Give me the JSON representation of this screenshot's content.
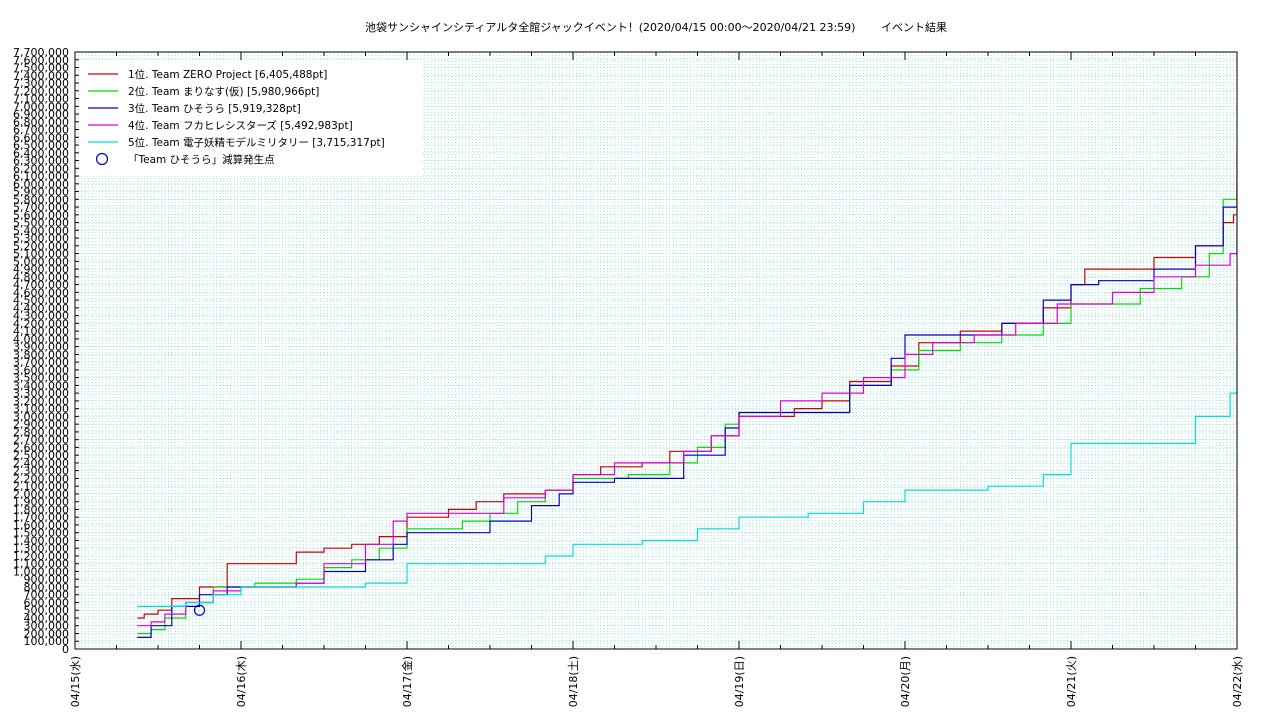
{
  "chart_data": {
    "type": "line",
    "title": "池袋サンシャインシティアルタ全館ジャックイベント！(2020/04/15 00:00～2020/04/21 23:59)　　 イベント結果",
    "xlabel": "",
    "ylabel": "",
    "x_start": "2020-04-15T00:00",
    "x_end": "2020-04-22T00:00",
    "x_ticks": [
      "04/15(水)",
      "04/16(木)",
      "04/17(金)",
      "04/18(土)",
      "04/19(日)",
      "04/20(月)",
      "04/21(火)",
      "04/22(水)"
    ],
    "ylim": [
      0,
      7700000
    ],
    "y_ticks": [
      "0",
      "100,000",
      "200,000",
      "300,000",
      "400,000",
      "500,000",
      "600,000",
      "700,000",
      "800,000",
      "900,000",
      "1,000,000",
      "1,100,000",
      "1,200,000",
      "1,300,000",
      "1,400,000",
      "1,500,000",
      "1,600,000",
      "1,700,000",
      "1,800,000",
      "1,900,000",
      "2,000,000",
      "2,100,000",
      "2,200,000",
      "2,300,000",
      "2,400,000",
      "2,500,000",
      "2,600,000",
      "2,700,000",
      "2,800,000",
      "2,900,000",
      "3,000,000",
      "3,100,000",
      "3,200,000",
      "3,300,000",
      "3,400,000",
      "3,500,000",
      "3,600,000",
      "3,700,000",
      "3,800,000",
      "3,900,000",
      "4,000,000",
      "4,100,000",
      "4,200,000",
      "4,300,000",
      "4,400,000",
      "4,500,000",
      "4,600,000",
      "4,700,000",
      "4,800,000",
      "4,900,000",
      "5,000,000",
      "5,100,000",
      "5,200,000",
      "5,300,000",
      "5,400,000",
      "5,500,000",
      "5,600,000",
      "5,700,000",
      "5,800,000",
      "5,900,000",
      "6,000,000",
      "6,100,000",
      "6,200,000",
      "6,300,000",
      "6,400,000",
      "6,500,000",
      "6,600,000",
      "6,700,000",
      "6,800,000",
      "6,900,000",
      "7,000,000",
      "7,100,000",
      "7,200,000",
      "7,300,000",
      "7,400,000",
      "7,500,000",
      "7,600,000",
      "7,700,000"
    ],
    "grid": true,
    "legend_position": "top-left",
    "series": [
      {
        "name": "1位. Team ZERO Project [6,405,488pt]",
        "color": "#cc0000",
        "points": [
          [
            "2020-04-15T09:00",
            400000
          ],
          [
            "2020-04-15T10:00",
            450000
          ],
          [
            "2020-04-15T12:00",
            500000
          ],
          [
            "2020-04-15T14:00",
            650000
          ],
          [
            "2020-04-15T18:00",
            800000
          ],
          [
            "2020-04-15T22:00",
            1100000
          ],
          [
            "2020-04-16T04:00",
            1100000
          ],
          [
            "2020-04-16T08:00",
            1250000
          ],
          [
            "2020-04-16T12:00",
            1300000
          ],
          [
            "2020-04-16T16:00",
            1350000
          ],
          [
            "2020-04-16T20:00",
            1450000
          ],
          [
            "2020-04-17T00:00",
            1700000
          ],
          [
            "2020-04-17T06:00",
            1800000
          ],
          [
            "2020-04-17T10:00",
            1900000
          ],
          [
            "2020-04-17T14:00",
            2000000
          ],
          [
            "2020-04-17T20:00",
            2050000
          ],
          [
            "2020-04-18T00:00",
            2250000
          ],
          [
            "2020-04-18T04:00",
            2350000
          ],
          [
            "2020-04-18T10:00",
            2400000
          ],
          [
            "2020-04-18T14:00",
            2550000
          ],
          [
            "2020-04-18T20:00",
            2750000
          ],
          [
            "2020-04-19T00:00",
            3000000
          ],
          [
            "2020-04-19T08:00",
            3100000
          ],
          [
            "2020-04-19T12:00",
            3200000
          ],
          [
            "2020-04-19T16:00",
            3450000
          ],
          [
            "2020-04-19T22:00",
            3650000
          ],
          [
            "2020-04-20T02:00",
            3950000
          ],
          [
            "2020-04-20T08:00",
            4100000
          ],
          [
            "2020-04-20T14:00",
            4200000
          ],
          [
            "2020-04-20T20:00",
            4400000
          ],
          [
            "2020-04-21T00:00",
            4700000
          ],
          [
            "2020-04-21T02:00",
            4900000
          ],
          [
            "2020-04-21T08:00",
            4900000
          ],
          [
            "2020-04-21T12:00",
            5050000
          ],
          [
            "2020-04-21T18:00",
            5200000
          ],
          [
            "2020-04-21T22:00",
            5500000
          ],
          [
            "2020-04-21T23:30",
            5600000
          ],
          [
            "2020-04-22T00:00",
            6405488
          ]
        ]
      },
      {
        "name": "2位. Team まりなす(仮) [5,980,966pt]",
        "color": "#00dd00",
        "points": [
          [
            "2020-04-15T09:00",
            200000
          ],
          [
            "2020-04-15T11:00",
            250000
          ],
          [
            "2020-04-15T13:00",
            400000
          ],
          [
            "2020-04-15T16:00",
            600000
          ],
          [
            "2020-04-15T20:00",
            800000
          ],
          [
            "2020-04-16T02:00",
            850000
          ],
          [
            "2020-04-16T08:00",
            900000
          ],
          [
            "2020-04-16T12:00",
            1050000
          ],
          [
            "2020-04-16T16:00",
            1150000
          ],
          [
            "2020-04-16T20:00",
            1300000
          ],
          [
            "2020-04-17T00:00",
            1550000
          ],
          [
            "2020-04-17T08:00",
            1650000
          ],
          [
            "2020-04-17T12:00",
            1750000
          ],
          [
            "2020-04-17T16:00",
            1900000
          ],
          [
            "2020-04-17T20:00",
            2050000
          ],
          [
            "2020-04-18T00:00",
            2200000
          ],
          [
            "2020-04-18T08:00",
            2250000
          ],
          [
            "2020-04-18T14:00",
            2400000
          ],
          [
            "2020-04-18T18:00",
            2600000
          ],
          [
            "2020-04-18T22:00",
            2900000
          ],
          [
            "2020-04-19T00:00",
            3050000
          ],
          [
            "2020-04-19T10:00",
            3050000
          ],
          [
            "2020-04-19T16:00",
            3400000
          ],
          [
            "2020-04-19T22:00",
            3600000
          ],
          [
            "2020-04-20T02:00",
            3850000
          ],
          [
            "2020-04-20T08:00",
            3950000
          ],
          [
            "2020-04-20T14:00",
            4050000
          ],
          [
            "2020-04-20T20:00",
            4200000
          ],
          [
            "2020-04-21T00:00",
            4450000
          ],
          [
            "2020-04-21T06:00",
            4450000
          ],
          [
            "2020-04-21T10:00",
            4650000
          ],
          [
            "2020-04-21T16:00",
            4800000
          ],
          [
            "2020-04-21T20:00",
            5100000
          ],
          [
            "2020-04-21T22:00",
            5800000
          ],
          [
            "2020-04-22T00:00",
            5980966
          ]
        ]
      },
      {
        "name": "3位. Team ひそうら [5,919,328pt]",
        "color": "#0000cc",
        "points": [
          [
            "2020-04-15T09:00",
            150000
          ],
          [
            "2020-04-15T11:00",
            300000
          ],
          [
            "2020-04-15T14:00",
            550000
          ],
          [
            "2020-04-15T18:00",
            700000
          ],
          [
            "2020-04-15T22:00",
            800000
          ],
          [
            "2020-04-16T04:00",
            800000
          ],
          [
            "2020-04-16T08:00",
            850000
          ],
          [
            "2020-04-16T12:00",
            1000000
          ],
          [
            "2020-04-16T18:00",
            1150000
          ],
          [
            "2020-04-16T22:00",
            1350000
          ],
          [
            "2020-04-17T00:00",
            1500000
          ],
          [
            "2020-04-17T08:00",
            1500000
          ],
          [
            "2020-04-17T12:00",
            1650000
          ],
          [
            "2020-04-17T18:00",
            1850000
          ],
          [
            "2020-04-17T22:00",
            2000000
          ],
          [
            "2020-04-18T00:00",
            2150000
          ],
          [
            "2020-04-18T06:00",
            2200000
          ],
          [
            "2020-04-18T12:00",
            2200000
          ],
          [
            "2020-04-18T16:00",
            2500000
          ],
          [
            "2020-04-18T22:00",
            2850000
          ],
          [
            "2020-04-19T00:00",
            3050000
          ],
          [
            "2020-04-19T08:00",
            3050000
          ],
          [
            "2020-04-19T16:00",
            3400000
          ],
          [
            "2020-04-19T22:00",
            3750000
          ],
          [
            "2020-04-20T00:00",
            4050000
          ],
          [
            "2020-04-20T08:00",
            4050000
          ],
          [
            "2020-04-20T14:00",
            4200000
          ],
          [
            "2020-04-20T20:00",
            4500000
          ],
          [
            "2020-04-21T00:00",
            4700000
          ],
          [
            "2020-04-21T04:00",
            4750000
          ],
          [
            "2020-04-21T12:00",
            4900000
          ],
          [
            "2020-04-21T18:00",
            5200000
          ],
          [
            "2020-04-21T22:00",
            5700000
          ],
          [
            "2020-04-22T00:00",
            5919328
          ]
        ]
      },
      {
        "name": "4位. Team フカヒレシスターズ [5,492,983pt]",
        "color": "#dd00dd",
        "points": [
          [
            "2020-04-15T09:00",
            300000
          ],
          [
            "2020-04-15T11:00",
            350000
          ],
          [
            "2020-04-15T13:00",
            450000
          ],
          [
            "2020-04-15T16:00",
            600000
          ],
          [
            "2020-04-15T20:00",
            750000
          ],
          [
            "2020-04-16T00:00",
            800000
          ],
          [
            "2020-04-16T08:00",
            850000
          ],
          [
            "2020-04-16T12:00",
            1100000
          ],
          [
            "2020-04-16T18:00",
            1350000
          ],
          [
            "2020-04-16T22:00",
            1650000
          ],
          [
            "2020-04-17T00:00",
            1750000
          ],
          [
            "2020-04-17T08:00",
            1750000
          ],
          [
            "2020-04-17T14:00",
            1950000
          ],
          [
            "2020-04-17T20:00",
            2050000
          ],
          [
            "2020-04-18T00:00",
            2250000
          ],
          [
            "2020-04-18T06:00",
            2400000
          ],
          [
            "2020-04-18T12:00",
            2400000
          ],
          [
            "2020-04-18T16:00",
            2550000
          ],
          [
            "2020-04-18T20:00",
            2750000
          ],
          [
            "2020-04-19T00:00",
            3000000
          ],
          [
            "2020-04-19T06:00",
            3200000
          ],
          [
            "2020-04-19T12:00",
            3300000
          ],
          [
            "2020-04-19T18:00",
            3500000
          ],
          [
            "2020-04-20T00:00",
            3800000
          ],
          [
            "2020-04-20T04:00",
            3950000
          ],
          [
            "2020-04-20T10:00",
            4050000
          ],
          [
            "2020-04-20T16:00",
            4200000
          ],
          [
            "2020-04-20T22:00",
            4450000
          ],
          [
            "2020-04-21T06:00",
            4600000
          ],
          [
            "2020-04-21T12:00",
            4800000
          ],
          [
            "2020-04-21T18:00",
            4950000
          ],
          [
            "2020-04-21T23:00",
            5100000
          ],
          [
            "2020-04-22T00:00",
            5492983
          ]
        ]
      },
      {
        "name": "5位. Team 電子妖精モデルミリタリー [3,715,317pt]",
        "color": "#00dddd",
        "points": [
          [
            "2020-04-15T09:00",
            550000
          ],
          [
            "2020-04-15T12:00",
            550000
          ],
          [
            "2020-04-15T16:00",
            600000
          ],
          [
            "2020-04-15T20:00",
            700000
          ],
          [
            "2020-04-16T00:00",
            800000
          ],
          [
            "2020-04-16T12:00",
            800000
          ],
          [
            "2020-04-16T18:00",
            850000
          ],
          [
            "2020-04-17T00:00",
            1100000
          ],
          [
            "2020-04-17T12:00",
            1100000
          ],
          [
            "2020-04-17T20:00",
            1200000
          ],
          [
            "2020-04-18T00:00",
            1350000
          ],
          [
            "2020-04-18T10:00",
            1400000
          ],
          [
            "2020-04-18T18:00",
            1550000
          ],
          [
            "2020-04-19T00:00",
            1700000
          ],
          [
            "2020-04-19T10:00",
            1750000
          ],
          [
            "2020-04-19T18:00",
            1900000
          ],
          [
            "2020-04-20T00:00",
            2050000
          ],
          [
            "2020-04-20T12:00",
            2100000
          ],
          [
            "2020-04-20T20:00",
            2250000
          ],
          [
            "2020-04-21T00:00",
            2650000
          ],
          [
            "2020-04-21T10:00",
            2650000
          ],
          [
            "2020-04-21T18:00",
            3000000
          ],
          [
            "2020-04-21T23:00",
            3300000
          ],
          [
            "2020-04-22T00:00",
            3715317
          ]
        ]
      }
    ],
    "markers": {
      "name": "「Team ひそうら」減算発生点",
      "color": "#0000cc",
      "points": [
        [
          "2020-04-15T18:00",
          500000
        ]
      ]
    }
  }
}
